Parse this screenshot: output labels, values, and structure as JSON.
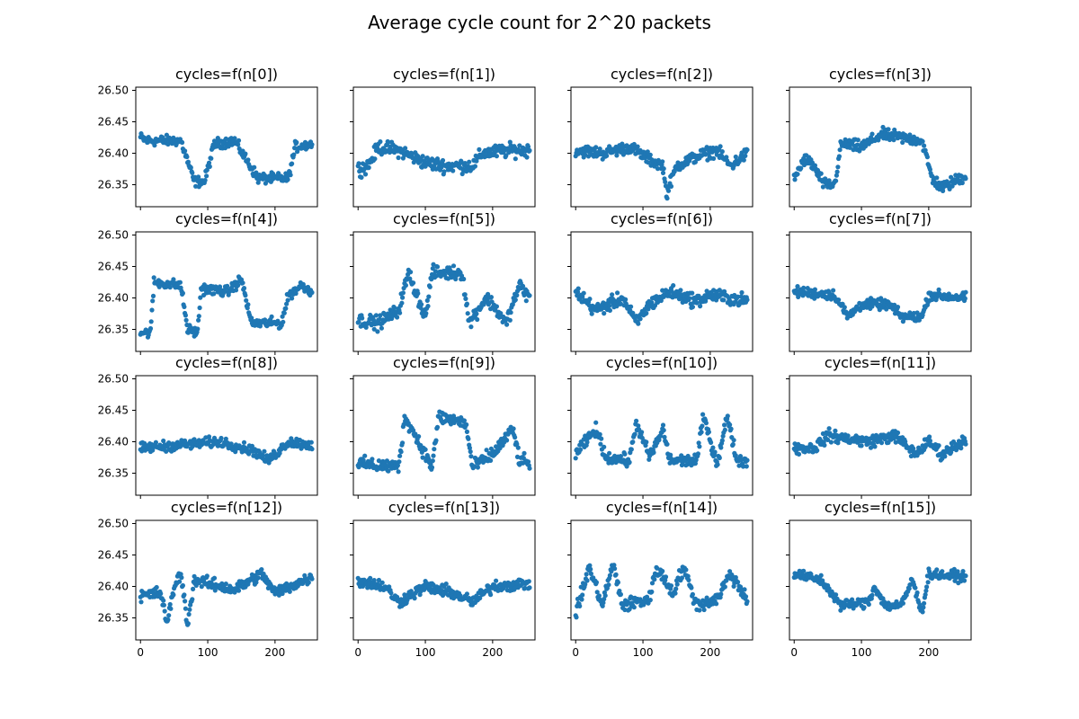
{
  "figure": {
    "suptitle": "Average cycle count for 2^20 packets"
  },
  "colors": {
    "marker": "#1f77b4",
    "axes": "#000000",
    "background": "#ffffff"
  },
  "chart_data": {
    "type": "scatter",
    "layout": "4x4 grid, shared x and y axes",
    "marker": "dot",
    "x_points": 256,
    "xlim": [
      -7,
      263
    ],
    "ylim": [
      26.315,
      26.505
    ],
    "xticks": [
      0,
      100,
      200
    ],
    "xtick_labels": [
      "0",
      "100",
      "200"
    ],
    "yticks": [
      26.35,
      26.4,
      26.45,
      26.5
    ],
    "ytick_labels": [
      "26.35",
      "26.40",
      "26.45",
      "26.50"
    ],
    "panels": [
      {
        "title": "cycles=f(n[0])",
        "segments": [
          [
            0,
            26.425
          ],
          [
            10,
            26.42
          ],
          [
            30,
            26.42
          ],
          [
            60,
            26.42
          ],
          [
            80,
            26.355
          ],
          [
            95,
            26.355
          ],
          [
            110,
            26.415
          ],
          [
            140,
            26.42
          ],
          [
            160,
            26.385
          ],
          [
            175,
            26.36
          ],
          [
            220,
            26.36
          ],
          [
            230,
            26.41
          ],
          [
            255,
            26.415
          ]
        ],
        "spread": 0.012
      },
      {
        "title": "cycles=f(n[1])",
        "segments": [
          [
            0,
            26.375
          ],
          [
            15,
            26.38
          ],
          [
            30,
            26.41
          ],
          [
            60,
            26.405
          ],
          [
            100,
            26.385
          ],
          [
            130,
            26.38
          ],
          [
            170,
            26.38
          ],
          [
            185,
            26.4
          ],
          [
            230,
            26.405
          ],
          [
            255,
            26.405
          ]
        ],
        "spread": 0.016
      },
      {
        "title": "cycles=f(n[2])",
        "segments": [
          [
            0,
            26.405
          ],
          [
            40,
            26.4
          ],
          [
            80,
            26.41
          ],
          [
            110,
            26.39
          ],
          [
            130,
            26.38
          ],
          [
            135,
            26.335
          ],
          [
            150,
            26.38
          ],
          [
            180,
            26.395
          ],
          [
            210,
            26.405
          ],
          [
            230,
            26.38
          ],
          [
            255,
            26.4
          ]
        ],
        "spread": 0.014
      },
      {
        "title": "cycles=f(n[3])",
        "segments": [
          [
            0,
            26.36
          ],
          [
            15,
            26.39
          ],
          [
            25,
            26.385
          ],
          [
            45,
            26.35
          ],
          [
            60,
            26.35
          ],
          [
            70,
            26.415
          ],
          [
            100,
            26.41
          ],
          [
            130,
            26.43
          ],
          [
            190,
            26.42
          ],
          [
            205,
            26.36
          ],
          [
            220,
            26.345
          ],
          [
            255,
            26.365
          ]
        ],
        "spread": 0.014
      },
      {
        "title": "cycles=f(n[4])",
        "segments": [
          [
            0,
            26.345
          ],
          [
            15,
            26.345
          ],
          [
            20,
            26.425
          ],
          [
            60,
            26.42
          ],
          [
            70,
            26.35
          ],
          [
            85,
            26.345
          ],
          [
            90,
            26.415
          ],
          [
            130,
            26.41
          ],
          [
            150,
            26.43
          ],
          [
            165,
            26.36
          ],
          [
            210,
            26.36
          ],
          [
            220,
            26.405
          ],
          [
            240,
            26.42
          ],
          [
            255,
            26.41
          ]
        ],
        "spread": 0.012
      },
      {
        "title": "cycles=f(n[5])",
        "segments": [
          [
            0,
            26.365
          ],
          [
            30,
            26.36
          ],
          [
            60,
            26.38
          ],
          [
            75,
            26.44
          ],
          [
            100,
            26.37
          ],
          [
            110,
            26.44
          ],
          [
            155,
            26.44
          ],
          [
            165,
            26.36
          ],
          [
            190,
            26.4
          ],
          [
            200,
            26.39
          ],
          [
            220,
            26.36
          ],
          [
            240,
            26.42
          ],
          [
            255,
            26.4
          ]
        ],
        "spread": 0.016
      },
      {
        "title": "cycles=f(n[6])",
        "segments": [
          [
            0,
            26.41
          ],
          [
            30,
            26.38
          ],
          [
            70,
            26.4
          ],
          [
            90,
            26.36
          ],
          [
            110,
            26.39
          ],
          [
            140,
            26.41
          ],
          [
            180,
            26.395
          ],
          [
            200,
            26.405
          ],
          [
            255,
            26.395
          ]
        ],
        "spread": 0.016
      },
      {
        "title": "cycles=f(n[7])",
        "segments": [
          [
            0,
            26.41
          ],
          [
            60,
            26.405
          ],
          [
            80,
            26.37
          ],
          [
            100,
            26.39
          ],
          [
            140,
            26.39
          ],
          [
            160,
            26.37
          ],
          [
            190,
            26.37
          ],
          [
            200,
            26.405
          ],
          [
            255,
            26.4
          ]
        ],
        "spread": 0.012
      },
      {
        "title": "cycles=f(n[8])",
        "segments": [
          [
            0,
            26.39
          ],
          [
            60,
            26.395
          ],
          [
            120,
            26.4
          ],
          [
            170,
            26.385
          ],
          [
            190,
            26.37
          ],
          [
            220,
            26.4
          ],
          [
            255,
            26.395
          ]
        ],
        "spread": 0.012
      },
      {
        "title": "cycles=f(n[9])",
        "segments": [
          [
            0,
            26.365
          ],
          [
            60,
            26.36
          ],
          [
            70,
            26.44
          ],
          [
            100,
            26.38
          ],
          [
            110,
            26.36
          ],
          [
            120,
            26.44
          ],
          [
            160,
            26.43
          ],
          [
            170,
            26.36
          ],
          [
            200,
            26.38
          ],
          [
            230,
            26.42
          ],
          [
            240,
            26.37
          ],
          [
            255,
            26.365
          ]
        ],
        "spread": 0.016
      },
      {
        "title": "cycles=f(n[10])",
        "segments": [
          [
            0,
            26.38
          ],
          [
            30,
            26.42
          ],
          [
            45,
            26.375
          ],
          [
            80,
            26.37
          ],
          [
            90,
            26.43
          ],
          [
            110,
            26.375
          ],
          [
            130,
            26.42
          ],
          [
            140,
            26.37
          ],
          [
            180,
            26.37
          ],
          [
            190,
            26.44
          ],
          [
            210,
            26.365
          ],
          [
            225,
            26.44
          ],
          [
            240,
            26.37
          ],
          [
            255,
            26.37
          ]
        ],
        "spread": 0.014
      },
      {
        "title": "cycles=f(n[11])",
        "segments": [
          [
            0,
            26.39
          ],
          [
            30,
            26.39
          ],
          [
            50,
            26.41
          ],
          [
            110,
            26.4
          ],
          [
            150,
            26.41
          ],
          [
            180,
            26.38
          ],
          [
            200,
            26.4
          ],
          [
            220,
            26.38
          ],
          [
            255,
            26.405
          ]
        ],
        "spread": 0.014
      },
      {
        "title": "cycles=f(n[12])",
        "segments": [
          [
            0,
            26.385
          ],
          [
            30,
            26.39
          ],
          [
            40,
            26.34
          ],
          [
            50,
            26.4
          ],
          [
            60,
            26.42
          ],
          [
            70,
            26.34
          ],
          [
            80,
            26.41
          ],
          [
            140,
            26.395
          ],
          [
            180,
            26.42
          ],
          [
            200,
            26.39
          ],
          [
            255,
            26.415
          ]
        ],
        "spread": 0.014
      },
      {
        "title": "cycles=f(n[13])",
        "segments": [
          [
            0,
            26.41
          ],
          [
            40,
            26.4
          ],
          [
            60,
            26.375
          ],
          [
            100,
            26.4
          ],
          [
            140,
            26.39
          ],
          [
            170,
            26.375
          ],
          [
            200,
            26.4
          ],
          [
            255,
            26.405
          ]
        ],
        "spread": 0.014
      },
      {
        "title": "cycles=f(n[14])",
        "segments": [
          [
            0,
            26.355
          ],
          [
            20,
            26.43
          ],
          [
            40,
            26.37
          ],
          [
            55,
            26.435
          ],
          [
            70,
            26.37
          ],
          [
            110,
            26.38
          ],
          [
            120,
            26.43
          ],
          [
            145,
            26.39
          ],
          [
            160,
            26.43
          ],
          [
            180,
            26.37
          ],
          [
            210,
            26.38
          ],
          [
            230,
            26.42
          ],
          [
            255,
            26.38
          ]
        ],
        "spread": 0.016
      },
      {
        "title": "cycles=f(n[15])",
        "segments": [
          [
            0,
            26.42
          ],
          [
            40,
            26.41
          ],
          [
            70,
            26.37
          ],
          [
            110,
            26.375
          ],
          [
            120,
            26.4
          ],
          [
            135,
            26.37
          ],
          [
            160,
            26.37
          ],
          [
            175,
            26.41
          ],
          [
            190,
            26.36
          ],
          [
            200,
            26.42
          ],
          [
            255,
            26.415
          ]
        ],
        "spread": 0.012
      }
    ]
  }
}
